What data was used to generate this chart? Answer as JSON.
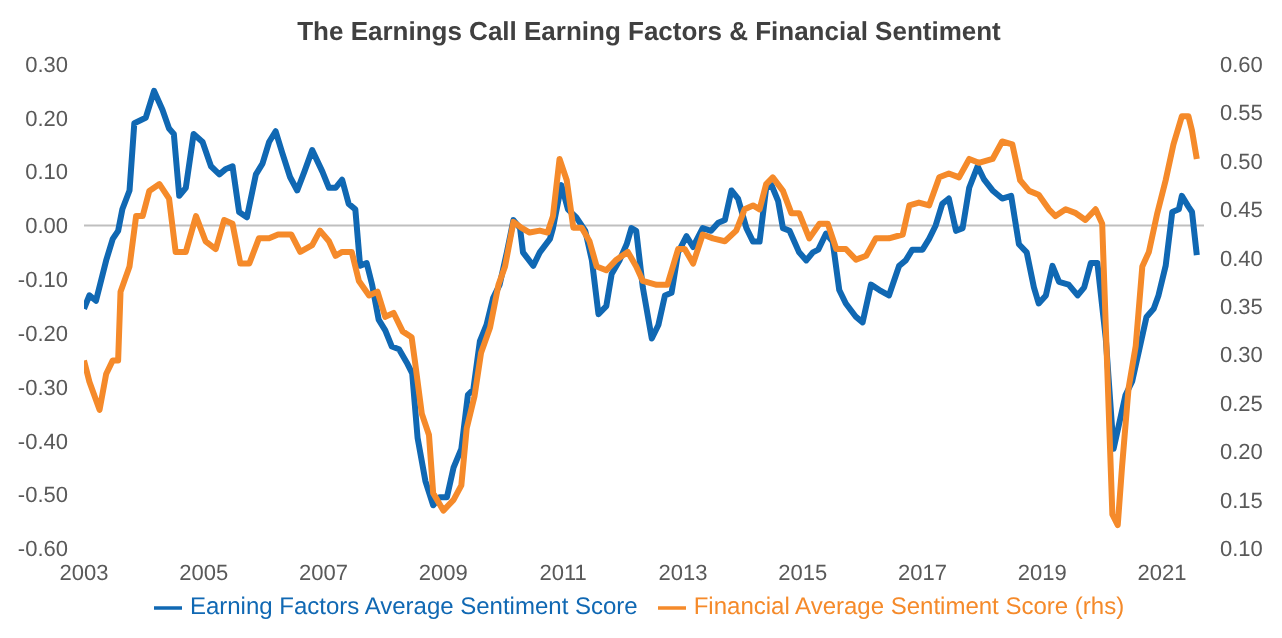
{
  "chart_data": {
    "type": "line",
    "title": "The Earnings Call Earning Factors & Financial Sentiment",
    "legend": "bottom",
    "marker": "none",
    "line_style": "solid",
    "grid": false,
    "xlim": [
      2003,
      2021.7
    ],
    "xticks": [
      2003,
      2005,
      2007,
      2009,
      2011,
      2013,
      2015,
      2017,
      2019,
      2021
    ],
    "ylim": [
      -0.6,
      0.3
    ],
    "yticks": [
      {
        "value": -0.6,
        "label": "-0.60"
      },
      {
        "value": -0.5,
        "label": "-0.50"
      },
      {
        "value": -0.4,
        "label": "-0.40"
      },
      {
        "value": -0.3,
        "label": "-0.30"
      },
      {
        "value": -0.2,
        "label": "-0.20"
      },
      {
        "value": -0.1,
        "label": "-0.10"
      },
      {
        "value": 0,
        "label": "0.00"
      },
      {
        "value": 0.1,
        "label": "0.10"
      },
      {
        "value": 0.2,
        "label": "0.20"
      },
      {
        "value": 0.3,
        "label": "0.30"
      }
    ],
    "y2lim": [
      0.1,
      0.6
    ],
    "y2ticks": [
      {
        "value": 0.1,
        "label": "0.10"
      },
      {
        "value": 0.15,
        "label": "0.15"
      },
      {
        "value": 0.2,
        "label": "0.20"
      },
      {
        "value": 0.25,
        "label": "0.25"
      },
      {
        "value": 0.3,
        "label": "0.30"
      },
      {
        "value": 0.35,
        "label": "0.35"
      },
      {
        "value": 0.4,
        "label": "0.40"
      },
      {
        "value": 0.45,
        "label": "0.45"
      },
      {
        "value": 0.5,
        "label": "0.50"
      },
      {
        "value": 0.55,
        "label": "0.55"
      },
      {
        "value": 0.6,
        "label": "0.60"
      }
    ],
    "ref_lines": [
      {
        "axis": "y",
        "value": 0,
        "color": "#bfbfbf"
      }
    ],
    "series": [
      {
        "name": "Earning Factors Average Sentiment Score",
        "color": "#1068b3",
        "x": [
          2003.0,
          2003.09,
          2003.2,
          2003.37,
          2003.48,
          2003.57,
          2003.64,
          2003.76,
          2003.84,
          2004.03,
          2004.17,
          2004.31,
          2004.42,
          2004.5,
          2004.59,
          2004.7,
          2004.83,
          2004.98,
          2005.12,
          2005.26,
          2005.37,
          2005.48,
          2005.59,
          2005.72,
          2005.87,
          2005.98,
          2006.09,
          2006.2,
          2006.31,
          2006.44,
          2006.56,
          2006.68,
          2006.81,
          2006.98,
          2007.09,
          2007.2,
          2007.31,
          2007.42,
          2007.53,
          2007.61,
          2007.72,
          2007.81,
          2007.92,
          2008.03,
          2008.14,
          2008.26,
          2008.39,
          2008.48,
          2008.57,
          2008.7,
          2008.83,
          2008.94,
          2009.06,
          2009.17,
          2009.3,
          2009.41,
          2009.5,
          2009.61,
          2009.72,
          2009.83,
          2009.94,
          2010.06,
          2010.17,
          2010.28,
          2010.33,
          2010.5,
          2010.61,
          2010.78,
          2010.83,
          2010.97,
          2011.08,
          2011.22,
          2011.37,
          2011.48,
          2011.59,
          2011.72,
          2011.81,
          2011.94,
          2012.06,
          2012.14,
          2012.22,
          2012.33,
          2012.48,
          2012.59,
          2012.7,
          2012.81,
          2012.92,
          2013.06,
          2013.17,
          2013.33,
          2013.47,
          2013.59,
          2013.7,
          2013.81,
          2013.92,
          2014.06,
          2014.17,
          2014.28,
          2014.39,
          2014.48,
          2014.59,
          2014.67,
          2014.78,
          2014.94,
          2015.06,
          2015.17,
          2015.26,
          2015.39,
          2015.5,
          2015.61,
          2015.72,
          2015.89,
          2016.0,
          2016.14,
          2016.28,
          2016.44,
          2016.61,
          2016.72,
          2016.83,
          2017.0,
          2017.11,
          2017.22,
          2017.33,
          2017.44,
          2017.56,
          2017.67,
          2017.78,
          2017.92,
          2018.03,
          2018.17,
          2018.33,
          2018.48,
          2018.61,
          2018.74,
          2018.86,
          2018.94,
          2019.06,
          2019.17,
          2019.28,
          2019.44,
          2019.59,
          2019.7,
          2019.81,
          2019.92,
          2020.06,
          2020.19,
          2020.28,
          2020.39,
          2020.5,
          2020.63,
          2020.74,
          2020.86,
          2020.94,
          2021.06,
          2021.17,
          2021.28,
          2021.33,
          2021.44,
          2021.5,
          2021.58
        ],
        "values": [
          -0.155,
          -0.13,
          -0.14,
          -0.065,
          -0.025,
          -0.01,
          0.03,
          0.065,
          0.19,
          0.2,
          0.25,
          0.215,
          0.18,
          0.17,
          0.055,
          0.07,
          0.17,
          0.155,
          0.11,
          0.095,
          0.105,
          0.11,
          0.025,
          0.015,
          0.095,
          0.115,
          0.155,
          0.175,
          0.135,
          0.09,
          0.065,
          0.1,
          0.14,
          0.1,
          0.07,
          0.07,
          0.085,
          0.04,
          0.03,
          -0.075,
          -0.07,
          -0.11,
          -0.175,
          -0.195,
          -0.225,
          -0.23,
          -0.255,
          -0.275,
          -0.395,
          -0.475,
          -0.52,
          -0.505,
          -0.505,
          -0.45,
          -0.415,
          -0.315,
          -0.305,
          -0.215,
          -0.185,
          -0.135,
          -0.11,
          -0.05,
          0.01,
          -0.005,
          -0.05,
          -0.075,
          -0.05,
          -0.025,
          -0.005,
          0.075,
          0.03,
          0.015,
          -0.01,
          -0.065,
          -0.165,
          -0.15,
          -0.09,
          -0.065,
          -0.035,
          -0.005,
          -0.01,
          -0.115,
          -0.21,
          -0.185,
          -0.13,
          -0.125,
          -0.05,
          -0.02,
          -0.04,
          -0.005,
          -0.01,
          0.005,
          0.01,
          0.065,
          0.05,
          -0.005,
          -0.03,
          -0.03,
          0.07,
          0.075,
          0.045,
          -0.005,
          -0.01,
          -0.05,
          -0.065,
          -0.05,
          -0.045,
          -0.015,
          -0.03,
          -0.12,
          -0.145,
          -0.17,
          -0.18,
          -0.11,
          -0.12,
          -0.13,
          -0.075,
          -0.065,
          -0.045,
          -0.045,
          -0.025,
          0.0,
          0.04,
          0.05,
          -0.01,
          -0.005,
          0.07,
          0.11,
          0.085,
          0.065,
          0.05,
          0.055,
          -0.035,
          -0.05,
          -0.115,
          -0.145,
          -0.13,
          -0.075,
          -0.105,
          -0.11,
          -0.13,
          -0.115,
          -0.07,
          -0.07,
          -0.21,
          -0.415,
          -0.37,
          -0.315,
          -0.29,
          -0.225,
          -0.17,
          -0.155,
          -0.13,
          -0.075,
          0.025,
          0.03,
          0.055,
          0.035,
          0.025,
          -0.055
        ]
      },
      {
        "name": "Financial Average Sentiment Score (rhs)",
        "color": "#f58a2a",
        "axis": "y2",
        "x": [
          2003.0,
          2003.09,
          2003.26,
          2003.37,
          2003.48,
          2003.57,
          2003.61,
          2003.76,
          2003.87,
          2003.98,
          2004.09,
          2004.26,
          2004.42,
          2004.53,
          2004.7,
          2004.87,
          2005.03,
          2005.2,
          2005.34,
          2005.48,
          2005.61,
          2005.76,
          2005.92,
          2006.09,
          2006.24,
          2006.46,
          2006.61,
          2006.81,
          2006.94,
          2007.09,
          2007.2,
          2007.31,
          2007.47,
          2007.59,
          2007.76,
          2007.9,
          2008.03,
          2008.17,
          2008.32,
          2008.47,
          2008.53,
          2008.64,
          2008.76,
          2008.83,
          2009.0,
          2009.17,
          2009.3,
          2009.39,
          2009.52,
          2009.63,
          2009.78,
          2009.92,
          2010.03,
          2010.17,
          2010.3,
          2010.44,
          2010.61,
          2010.74,
          2010.83,
          2010.94,
          2011.06,
          2011.17,
          2011.31,
          2011.44,
          2011.56,
          2011.72,
          2011.89,
          2012.08,
          2012.22,
          2012.33,
          2012.56,
          2012.74,
          2012.92,
          2013.03,
          2013.17,
          2013.33,
          2013.5,
          2013.7,
          2013.89,
          2014.03,
          2014.17,
          2014.28,
          2014.39,
          2014.5,
          2014.67,
          2014.81,
          2014.94,
          2015.11,
          2015.28,
          2015.42,
          2015.56,
          2015.72,
          2015.89,
          2016.06,
          2016.22,
          2016.44,
          2016.67,
          2016.78,
          2016.94,
          2017.11,
          2017.28,
          2017.44,
          2017.61,
          2017.78,
          2017.94,
          2018.17,
          2018.33,
          2018.5,
          2018.63,
          2018.78,
          2018.94,
          2019.11,
          2019.22,
          2019.39,
          2019.56,
          2019.72,
          2019.89,
          2020.0,
          2020.17,
          2020.26,
          2020.33,
          2020.44,
          2020.56,
          2020.67,
          2020.78,
          2020.92,
          2021.06,
          2021.19,
          2021.33,
          2021.44,
          2021.5,
          2021.58
        ],
        "values": [
          0.294,
          0.272,
          0.243,
          0.28,
          0.294,
          0.294,
          0.365,
          0.391,
          0.443,
          0.443,
          0.469,
          0.476,
          0.461,
          0.406,
          0.406,
          0.443,
          0.417,
          0.409,
          0.439,
          0.435,
          0.394,
          0.394,
          0.42,
          0.42,
          0.424,
          0.424,
          0.406,
          0.413,
          0.428,
          0.417,
          0.402,
          0.406,
          0.406,
          0.376,
          0.361,
          0.365,
          0.339,
          0.343,
          0.324,
          0.318,
          0.291,
          0.239,
          0.217,
          0.157,
          0.139,
          0.15,
          0.165,
          0.224,
          0.257,
          0.302,
          0.328,
          0.372,
          0.391,
          0.437,
          0.431,
          0.426,
          0.428,
          0.426,
          0.443,
          0.502,
          0.48,
          0.431,
          0.431,
          0.417,
          0.391,
          0.387,
          0.398,
          0.406,
          0.391,
          0.376,
          0.372,
          0.372,
          0.409,
          0.409,
          0.394,
          0.424,
          0.42,
          0.417,
          0.428,
          0.45,
          0.454,
          0.45,
          0.476,
          0.483,
          0.469,
          0.446,
          0.446,
          0.42,
          0.435,
          0.435,
          0.409,
          0.409,
          0.398,
          0.402,
          0.42,
          0.42,
          0.424,
          0.454,
          0.457,
          0.454,
          0.483,
          0.487,
          0.483,
          0.502,
          0.498,
          0.502,
          0.52,
          0.517,
          0.48,
          0.469,
          0.465,
          0.45,
          0.443,
          0.45,
          0.446,
          0.439,
          0.45,
          0.435,
          0.135,
          0.124,
          0.183,
          0.265,
          0.309,
          0.391,
          0.406,
          0.446,
          0.48,
          0.517,
          0.546,
          0.546,
          0.531,
          0.502
        ]
      }
    ]
  }
}
